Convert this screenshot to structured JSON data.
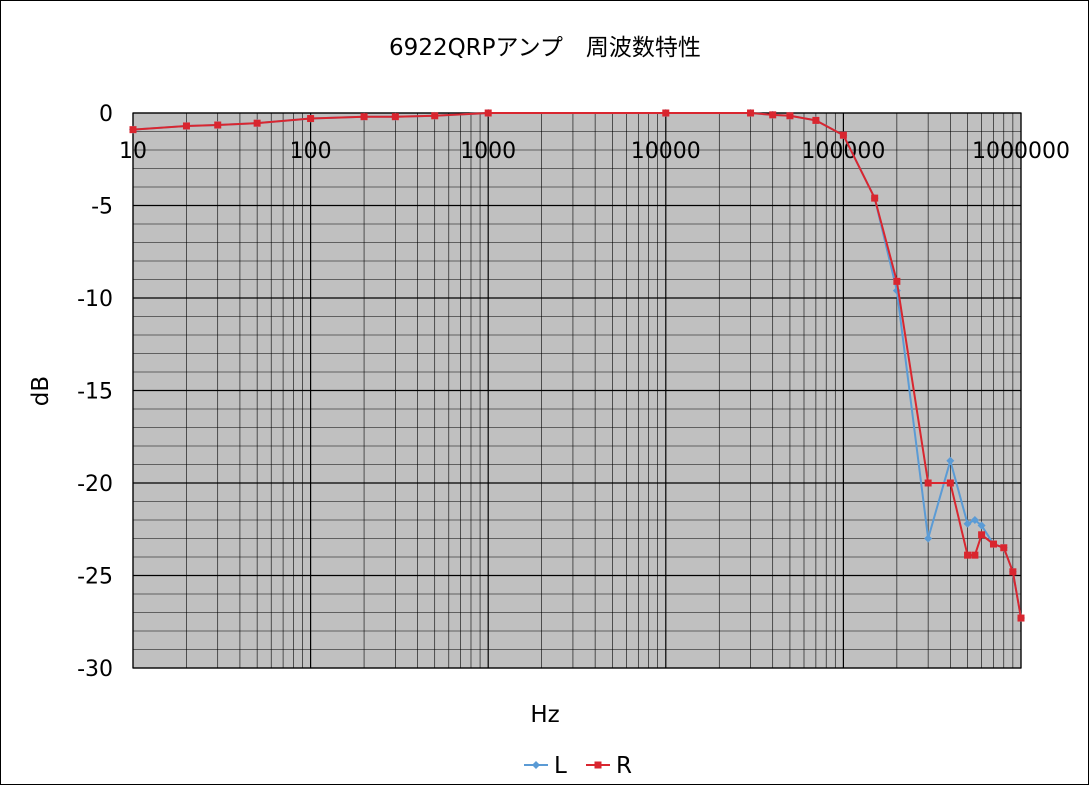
{
  "chart_data": {
    "type": "line",
    "title": "6922QRPアンプ　周波数特性",
    "xlabel": "Hz",
    "ylabel": "dB",
    "x_scale": "log",
    "xlim": [
      10,
      1000000
    ],
    "ylim": [
      -30,
      0
    ],
    "y_ticks": [
      0,
      -5,
      -10,
      -15,
      -20,
      -25,
      -30
    ],
    "x_ticks": [
      10,
      100,
      1000,
      10000,
      100000,
      1000000
    ],
    "x_tick_labels": [
      "10",
      "100",
      "1000",
      "10000",
      "100000",
      "1000000"
    ],
    "y_tick_labels": [
      "0",
      "-5",
      "-10",
      "-15",
      "-20",
      "-25",
      "-30"
    ],
    "grid": true,
    "plot_background": "#c0c0c0",
    "legend_position": "bottom",
    "series": [
      {
        "name": "L",
        "color": "#5b9bd5",
        "marker": "diamond",
        "points": [
          [
            10,
            -0.9
          ],
          [
            20,
            -0.7
          ],
          [
            30,
            -0.65
          ],
          [
            50,
            -0.55
          ],
          [
            100,
            -0.3
          ],
          [
            200,
            -0.2
          ],
          [
            300,
            -0.2
          ],
          [
            500,
            -0.15
          ],
          [
            1000,
            0
          ],
          [
            10000,
            0
          ],
          [
            30000,
            0
          ],
          [
            40000,
            -0.1
          ],
          [
            50000,
            -0.15
          ],
          [
            70000,
            -0.4
          ],
          [
            100000,
            -1.2
          ],
          [
            150000,
            -4.6
          ],
          [
            200000,
            -9.6
          ],
          [
            300000,
            -23
          ],
          [
            400000,
            -18.8
          ],
          [
            500000,
            -22.2
          ],
          [
            550000,
            -22
          ],
          [
            600000,
            -22.3
          ],
          [
            700000,
            -23.3
          ],
          [
            800000,
            -23.5
          ],
          [
            900000,
            -24.8
          ],
          [
            1000000,
            -27.3
          ]
        ]
      },
      {
        "name": "R",
        "color": "#d9262f",
        "marker": "square",
        "points": [
          [
            10,
            -0.9
          ],
          [
            20,
            -0.7
          ],
          [
            30,
            -0.65
          ],
          [
            50,
            -0.55
          ],
          [
            100,
            -0.3
          ],
          [
            200,
            -0.2
          ],
          [
            300,
            -0.2
          ],
          [
            500,
            -0.15
          ],
          [
            1000,
            0
          ],
          [
            10000,
            0
          ],
          [
            30000,
            0
          ],
          [
            40000,
            -0.1
          ],
          [
            50000,
            -0.15
          ],
          [
            70000,
            -0.4
          ],
          [
            100000,
            -1.2
          ],
          [
            150000,
            -4.6
          ],
          [
            200000,
            -9.1
          ],
          [
            300000,
            -20
          ],
          [
            400000,
            -20
          ],
          [
            500000,
            -23.9
          ],
          [
            550000,
            -23.9
          ],
          [
            600000,
            -22.8
          ],
          [
            700000,
            -23.3
          ],
          [
            800000,
            -23.5
          ],
          [
            900000,
            -24.8
          ],
          [
            1000000,
            -27.3
          ]
        ]
      }
    ]
  }
}
